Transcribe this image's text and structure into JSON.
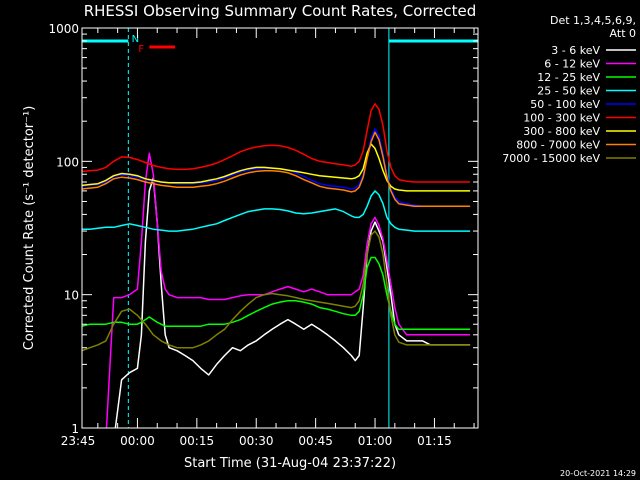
{
  "chart_data": {
    "type": "line",
    "title": "RHESSI Observing Summary Count Rates, Corrected",
    "xlabel": "Start Time (31-Aug-04 23:37:22)",
    "ylabel": "Corrected Count Rate (s⁻¹ detector⁻¹)",
    "y_scale": "log",
    "ylim": [
      1,
      1000
    ],
    "y_ticks": [
      {
        "value": 1,
        "label": "1"
      },
      {
        "value": 10,
        "label": "10"
      },
      {
        "value": 100,
        "label": "100"
      },
      {
        "value": 1000,
        "label": "1000"
      }
    ],
    "xlim": [
      -14,
      86
    ],
    "x_ticks": [
      {
        "value": -15,
        "label": "23:45"
      },
      {
        "value": 0,
        "label": "00:00"
      },
      {
        "value": 15,
        "label": "00:15"
      },
      {
        "value": 30,
        "label": "00:30"
      },
      {
        "value": 45,
        "label": "00:45"
      },
      {
        "value": 60,
        "label": "01:00"
      },
      {
        "value": 75,
        "label": "01:15"
      }
    ],
    "x_unit_note": "minutes after 00:00 UT",
    "legend": {
      "placement": "right-outside",
      "header": [
        "Det 1,3,4,5,6,9,",
        "Att 0"
      ]
    },
    "series": [
      {
        "name": "3 - 6 keV",
        "color": "#ffffff",
        "x": [
          -14,
          -12,
          -10,
          -8,
          -6,
          -4,
          -2,
          0,
          1,
          2,
          3,
          4,
          5,
          6,
          7,
          8,
          10,
          12,
          14,
          16,
          18,
          20,
          22,
          24,
          26,
          28,
          30,
          32,
          34,
          36,
          38,
          40,
          42,
          44,
          46,
          48,
          50,
          52,
          54,
          55,
          56,
          57,
          58,
          59,
          60,
          61,
          62,
          63,
          64,
          65,
          66,
          68,
          70,
          72,
          74,
          76,
          78,
          80,
          82,
          84
        ],
        "y": [
          0.8,
          0.8,
          0.8,
          0.8,
          0.8,
          2.3,
          2.6,
          2.8,
          5,
          25,
          60,
          75,
          35,
          12,
          5,
          4,
          3.8,
          3.5,
          3.2,
          2.8,
          2.5,
          3,
          3.5,
          4,
          3.8,
          4.2,
          4.5,
          5,
          5.5,
          6,
          6.5,
          6,
          5.5,
          6,
          5.5,
          5,
          4.5,
          4,
          3.5,
          3.2,
          3.5,
          8,
          20,
          30,
          35,
          30,
          25,
          16,
          10,
          6,
          5,
          4.5,
          4.5,
          4.5,
          4.2,
          4.2,
          4.2,
          4.2,
          4.2,
          4.2
        ]
      },
      {
        "name": "6 - 12 keV",
        "color": "#ff00ff",
        "x": [
          -14,
          -12,
          -10,
          -8,
          -6,
          -4,
          -2,
          0,
          1,
          2,
          3,
          4,
          5,
          6,
          7,
          8,
          10,
          12,
          14,
          16,
          18,
          20,
          22,
          24,
          26,
          28,
          30,
          32,
          34,
          36,
          38,
          40,
          42,
          44,
          46,
          48,
          50,
          52,
          54,
          55,
          56,
          57,
          58,
          59,
          60,
          61,
          62,
          63,
          64,
          65,
          66,
          68,
          70,
          72,
          74,
          76,
          78,
          80,
          82,
          84
        ],
        "y": [
          0.8,
          0.8,
          0.8,
          0.8,
          9.5,
          9.5,
          10,
          11,
          25,
          70,
          115,
          80,
          35,
          15,
          11,
          10,
          9.5,
          9.5,
          9.5,
          9.5,
          9.2,
          9.2,
          9.2,
          9.5,
          9.8,
          10,
          10,
          10,
          10.5,
          11,
          11.5,
          11,
          10.5,
          11,
          10.5,
          10,
          10,
          10,
          10,
          10.5,
          11,
          14,
          24,
          34,
          38,
          33,
          26,
          18,
          12,
          8,
          6,
          5,
          5,
          5,
          5,
          5,
          5,
          5,
          5,
          5
        ]
      },
      {
        "name": "12 - 25 keV",
        "color": "#00ff00",
        "x": [
          -14,
          -12,
          -10,
          -8,
          -6,
          -4,
          -2,
          0,
          1,
          2,
          3,
          4,
          5,
          6,
          7,
          8,
          10,
          12,
          14,
          16,
          18,
          20,
          22,
          24,
          26,
          28,
          30,
          32,
          34,
          36,
          38,
          40,
          42,
          44,
          46,
          48,
          50,
          52,
          54,
          55,
          56,
          57,
          58,
          59,
          60,
          61,
          62,
          63,
          64,
          65,
          66,
          68,
          70,
          72,
          74,
          76,
          78,
          80,
          82,
          84
        ],
        "y": [
          5.8,
          6,
          6,
          6,
          6.2,
          6.2,
          6,
          6,
          6.2,
          6.5,
          6.8,
          6.5,
          6.2,
          6,
          5.8,
          5.8,
          5.8,
          5.8,
          5.8,
          5.8,
          6,
          6,
          6,
          6.2,
          6.5,
          7,
          7.5,
          8,
          8.5,
          8.8,
          9,
          9,
          8.8,
          8.5,
          8,
          7.8,
          7.5,
          7.2,
          7,
          7,
          7.5,
          10,
          16,
          19,
          19,
          17,
          14,
          10,
          7.5,
          6,
          5.5,
          5.5,
          5.5,
          5.5,
          5.5,
          5.5,
          5.5,
          5.5,
          5.5,
          5.5
        ]
      },
      {
        "name": "25 - 50 keV",
        "color": "#00ffff",
        "x": [
          -14,
          -12,
          -10,
          -8,
          -6,
          -4,
          -2,
          0,
          2,
          4,
          6,
          8,
          10,
          12,
          14,
          16,
          18,
          20,
          22,
          24,
          26,
          28,
          30,
          32,
          34,
          36,
          38,
          40,
          42,
          44,
          46,
          48,
          50,
          52,
          54,
          55,
          56,
          57,
          58,
          59,
          60,
          61,
          62,
          63,
          64,
          65,
          66,
          68,
          70,
          72,
          74,
          76,
          78,
          80,
          82,
          84
        ],
        "y": [
          31,
          31,
          31.5,
          32,
          32,
          33,
          34,
          33,
          32,
          31,
          30.5,
          30,
          30,
          30.5,
          31,
          32,
          33,
          34,
          36,
          38,
          40,
          42,
          43,
          44,
          44,
          43.5,
          42.5,
          41,
          40.5,
          41,
          42,
          43,
          44,
          42,
          39,
          38,
          38,
          40,
          46,
          55,
          60,
          56,
          48,
          38,
          34,
          32,
          31,
          30.5,
          30,
          30,
          30,
          30,
          30,
          30,
          30,
          30
        ]
      },
      {
        "name": "50 - 100 keV",
        "color": "#0000ff",
        "x": [
          -14,
          -12,
          -10,
          -8,
          -6,
          -4,
          -2,
          0,
          2,
          4,
          6,
          8,
          10,
          12,
          14,
          16,
          18,
          20,
          22,
          24,
          26,
          28,
          30,
          32,
          34,
          36,
          38,
          40,
          42,
          44,
          46,
          48,
          50,
          52,
          54,
          55,
          56,
          57,
          58,
          59,
          60,
          61,
          62,
          63,
          64,
          65,
          66,
          68,
          70,
          72,
          74,
          76,
          78,
          80,
          82,
          84
        ],
        "y": [
          65,
          66,
          67,
          70,
          77,
          79,
          78,
          76,
          73,
          71,
          70,
          69,
          68,
          68,
          68,
          69,
          70,
          72,
          75,
          79,
          83,
          86,
          88,
          89,
          89,
          88,
          86,
          82,
          77,
          72,
          68,
          66,
          65,
          64,
          62,
          63,
          67,
          80,
          110,
          150,
          175,
          155,
          115,
          80,
          62,
          54,
          50,
          48,
          47,
          46,
          46,
          46,
          46,
          46,
          46,
          46
        ]
      },
      {
        "name": "100 - 300 keV",
        "color": "#ff0000",
        "x": [
          -14,
          -12,
          -10,
          -8,
          -6,
          -4,
          -2,
          0,
          2,
          4,
          6,
          8,
          10,
          12,
          14,
          16,
          18,
          20,
          22,
          24,
          26,
          28,
          30,
          32,
          34,
          36,
          38,
          40,
          42,
          44,
          46,
          48,
          50,
          52,
          54,
          55,
          56,
          57,
          58,
          59,
          60,
          61,
          62,
          63,
          64,
          65,
          66,
          68,
          70,
          72,
          74,
          76,
          78,
          80,
          82,
          84
        ],
        "y": [
          84,
          85,
          86,
          90,
          100,
          108,
          107,
          103,
          98,
          93,
          90,
          88,
          87,
          87,
          88,
          90,
          93,
          97,
          103,
          110,
          118,
          124,
          128,
          131,
          132,
          131,
          127,
          121,
          113,
          105,
          100,
          98,
          96,
          94,
          92,
          94,
          100,
          120,
          170,
          240,
          270,
          245,
          185,
          120,
          90,
          78,
          73,
          71,
          70,
          70,
          70,
          70,
          70,
          70,
          70,
          70
        ]
      },
      {
        "name": "300 - 800 keV",
        "color": "#ffff00",
        "x": [
          -14,
          -12,
          -10,
          -8,
          -6,
          -4,
          -2,
          0,
          2,
          4,
          6,
          8,
          10,
          12,
          14,
          16,
          18,
          20,
          22,
          24,
          26,
          28,
          30,
          32,
          34,
          36,
          38,
          40,
          42,
          44,
          46,
          48,
          50,
          52,
          54,
          55,
          56,
          57,
          58,
          59,
          60,
          61,
          62,
          63,
          64,
          65,
          66,
          68,
          70,
          72,
          74,
          76,
          78,
          80,
          82,
          84
        ],
        "y": [
          66,
          67,
          68,
          72,
          78,
          81,
          80,
          78,
          74,
          72,
          70,
          69,
          69,
          69,
          69,
          70,
          72,
          74,
          77,
          81,
          85,
          88,
          90,
          90,
          89,
          88,
          86,
          84,
          82,
          80,
          78,
          77,
          76,
          75,
          74,
          75,
          78,
          88,
          115,
          135,
          125,
          105,
          85,
          72,
          65,
          62,
          61,
          60,
          60,
          60,
          60,
          60,
          60,
          60,
          60,
          60
        ]
      },
      {
        "name": "800 - 7000 keV",
        "color": "#ff8000",
        "x": [
          -14,
          -12,
          -10,
          -8,
          -6,
          -4,
          -2,
          0,
          2,
          4,
          6,
          8,
          10,
          12,
          14,
          16,
          18,
          20,
          22,
          24,
          26,
          28,
          30,
          32,
          34,
          36,
          38,
          40,
          42,
          44,
          46,
          48,
          50,
          52,
          54,
          55,
          56,
          57,
          58,
          59,
          60,
          61,
          62,
          63,
          64,
          65,
          66,
          68,
          70,
          72,
          74,
          76,
          78,
          80,
          82,
          84
        ],
        "y": [
          62,
          63,
          64,
          68,
          74,
          76,
          75,
          73,
          70,
          68,
          66,
          65,
          64,
          64,
          64,
          65,
          66,
          68,
          71,
          75,
          79,
          82,
          84,
          85,
          85,
          84,
          82,
          78,
          73,
          69,
          65,
          63,
          62,
          61,
          59,
          60,
          64,
          76,
          105,
          140,
          165,
          145,
          108,
          76,
          60,
          52,
          48,
          47,
          46,
          46,
          46,
          46,
          46,
          46,
          46,
          46
        ]
      },
      {
        "name": "7000 - 15000 keV",
        "color": "#808000",
        "x": [
          -14,
          -12,
          -10,
          -8,
          -6,
          -4,
          -2,
          0,
          2,
          4,
          6,
          8,
          10,
          12,
          14,
          16,
          18,
          20,
          22,
          24,
          26,
          28,
          30,
          32,
          34,
          36,
          38,
          40,
          42,
          44,
          46,
          48,
          50,
          52,
          54,
          55,
          56,
          57,
          58,
          59,
          60,
          61,
          62,
          63,
          64,
          65,
          66,
          68,
          70,
          72,
          74,
          76,
          78,
          80,
          82,
          84
        ],
        "y": [
          3.8,
          4,
          4.2,
          4.5,
          6,
          7.5,
          7.8,
          7,
          6,
          5,
          4.5,
          4.2,
          4,
          4,
          4,
          4.2,
          4.5,
          5,
          5.5,
          6.5,
          7.5,
          8.5,
          9.5,
          10,
          10.2,
          10,
          9.8,
          9.5,
          9.2,
          9,
          8.8,
          8.6,
          8.4,
          8.2,
          8,
          8.2,
          9,
          12,
          20,
          28,
          30,
          27,
          20,
          12,
          7,
          5,
          4.4,
          4.2,
          4.2,
          4.2,
          4.2,
          4.2,
          4.2,
          4.2,
          4.2,
          4.2
        ]
      }
    ],
    "flag_bars": [
      {
        "label": "N",
        "color": "#00ffff",
        "segments": [
          [
            -14,
            -2.3
          ],
          [
            63.5,
            86
          ]
        ]
      },
      {
        "label": "F",
        "color": "#ff0000",
        "segments": [
          [
            3,
            9.5
          ]
        ]
      }
    ],
    "vertical_lines": [
      {
        "x": -14,
        "style": "solid",
        "color": "#00ffff"
      },
      {
        "x": -2.3,
        "style": "dashed",
        "color": "#00ffff"
      },
      {
        "x": 63.5,
        "style": "solid",
        "color": "#00ffff"
      },
      {
        "x": 86,
        "style": "dashed",
        "color": "#00ffff"
      }
    ]
  },
  "footer": {
    "timestamp": "20-Oct-2021 14:29"
  }
}
